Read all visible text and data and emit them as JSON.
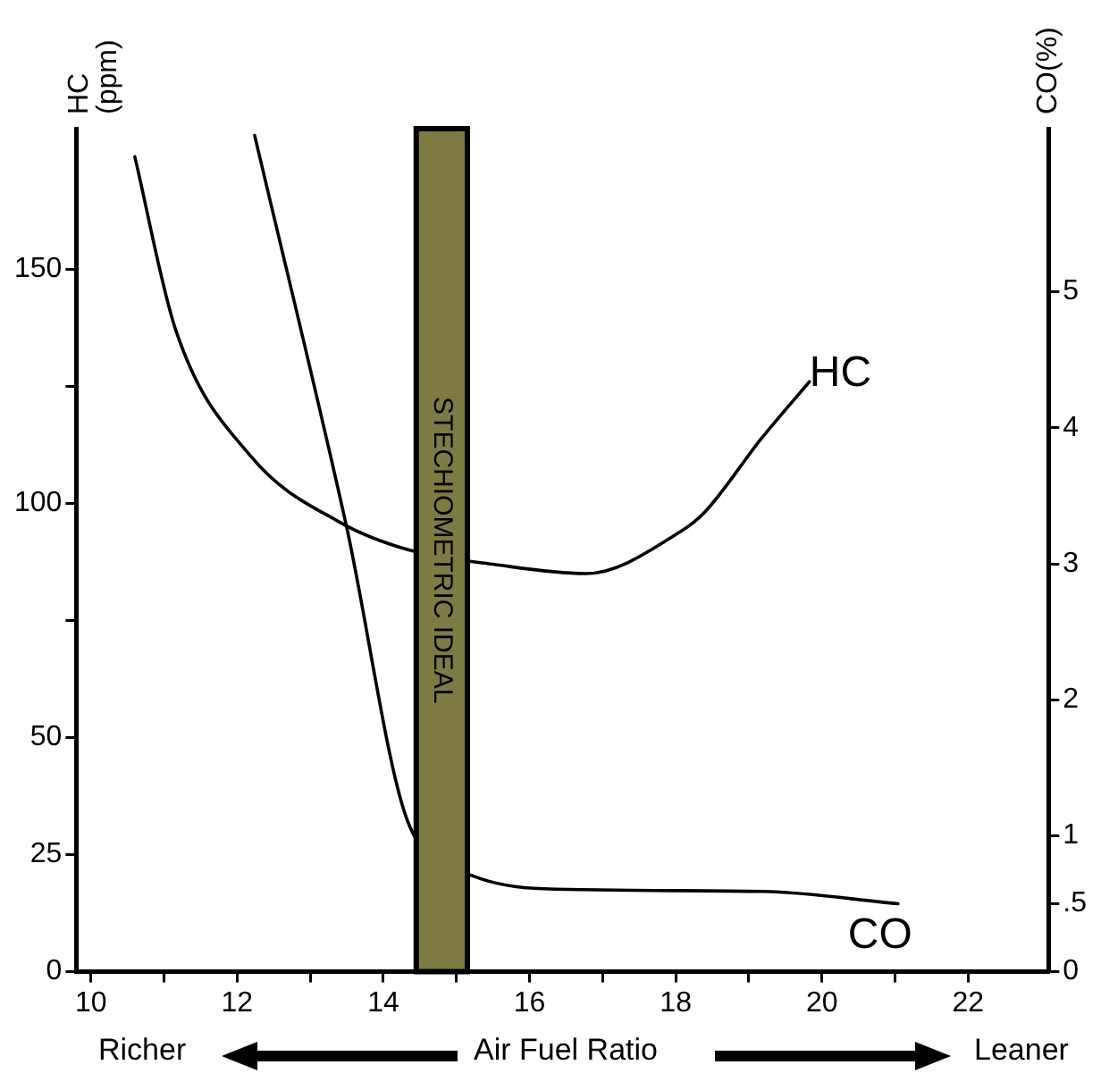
{
  "chart_data": {
    "type": "line",
    "xlabel": "Air Fuel Ratio",
    "ylabel": "HC (ppm)",
    "y2label": "CO(%)",
    "annotations": [
      "Richer",
      "Leaner"
    ],
    "series": [
      {
        "name": "HC",
        "color": "#000000",
        "x": [
          10.6,
          11.16,
          12.19,
          13.4,
          14.36,
          15.5,
          16.77,
          18.07,
          18.39,
          19.18,
          19.83
        ],
        "values": [
          174,
          137,
          110,
          96,
          90,
          87,
          85,
          94,
          98,
          114,
          126
        ]
      },
      {
        "name": "CO",
        "color": "#000000",
        "axis": "y2",
        "x": [
          12.24,
          13.49,
          14.36,
          15.25,
          16.2,
          19.2,
          21.04
        ],
        "values": [
          6.15,
          3.29,
          1.07,
          0.7,
          0.61,
          0.59,
          0.5
        ]
      }
    ],
    "bands": [
      {
        "axis": "x",
        "from": 14.45,
        "to": 15.15,
        "label": "STECHIOMETRIC IDEAL",
        "color": "#7d7a44"
      }
    ],
    "xlim": [
      9.8,
      23.1
    ],
    "xticks": [
      10,
      {
        "value": 11,
        "label": null
      },
      12,
      {
        "value": 13,
        "label": null
      },
      14,
      {
        "value": 15,
        "label": null
      },
      16,
      {
        "value": 17,
        "label": null
      },
      18,
      {
        "value": 19,
        "label": null
      },
      20,
      {
        "value": 21,
        "label": null
      },
      22
    ],
    "ylim": [
      0,
      180
    ],
    "yticks": [
      0,
      25,
      50,
      {
        "value": 75,
        "label": null
      },
      100,
      {
        "value": 125,
        "label": null
      },
      150
    ],
    "y2lim": [
      0,
      6.2
    ],
    "y2ticks": [
      0,
      {
        "value": 0.5,
        "label": ".5"
      },
      1,
      2,
      3,
      4,
      5
    ],
    "grid": false,
    "legend": false,
    "marker": "none",
    "line_style": "solid"
  }
}
